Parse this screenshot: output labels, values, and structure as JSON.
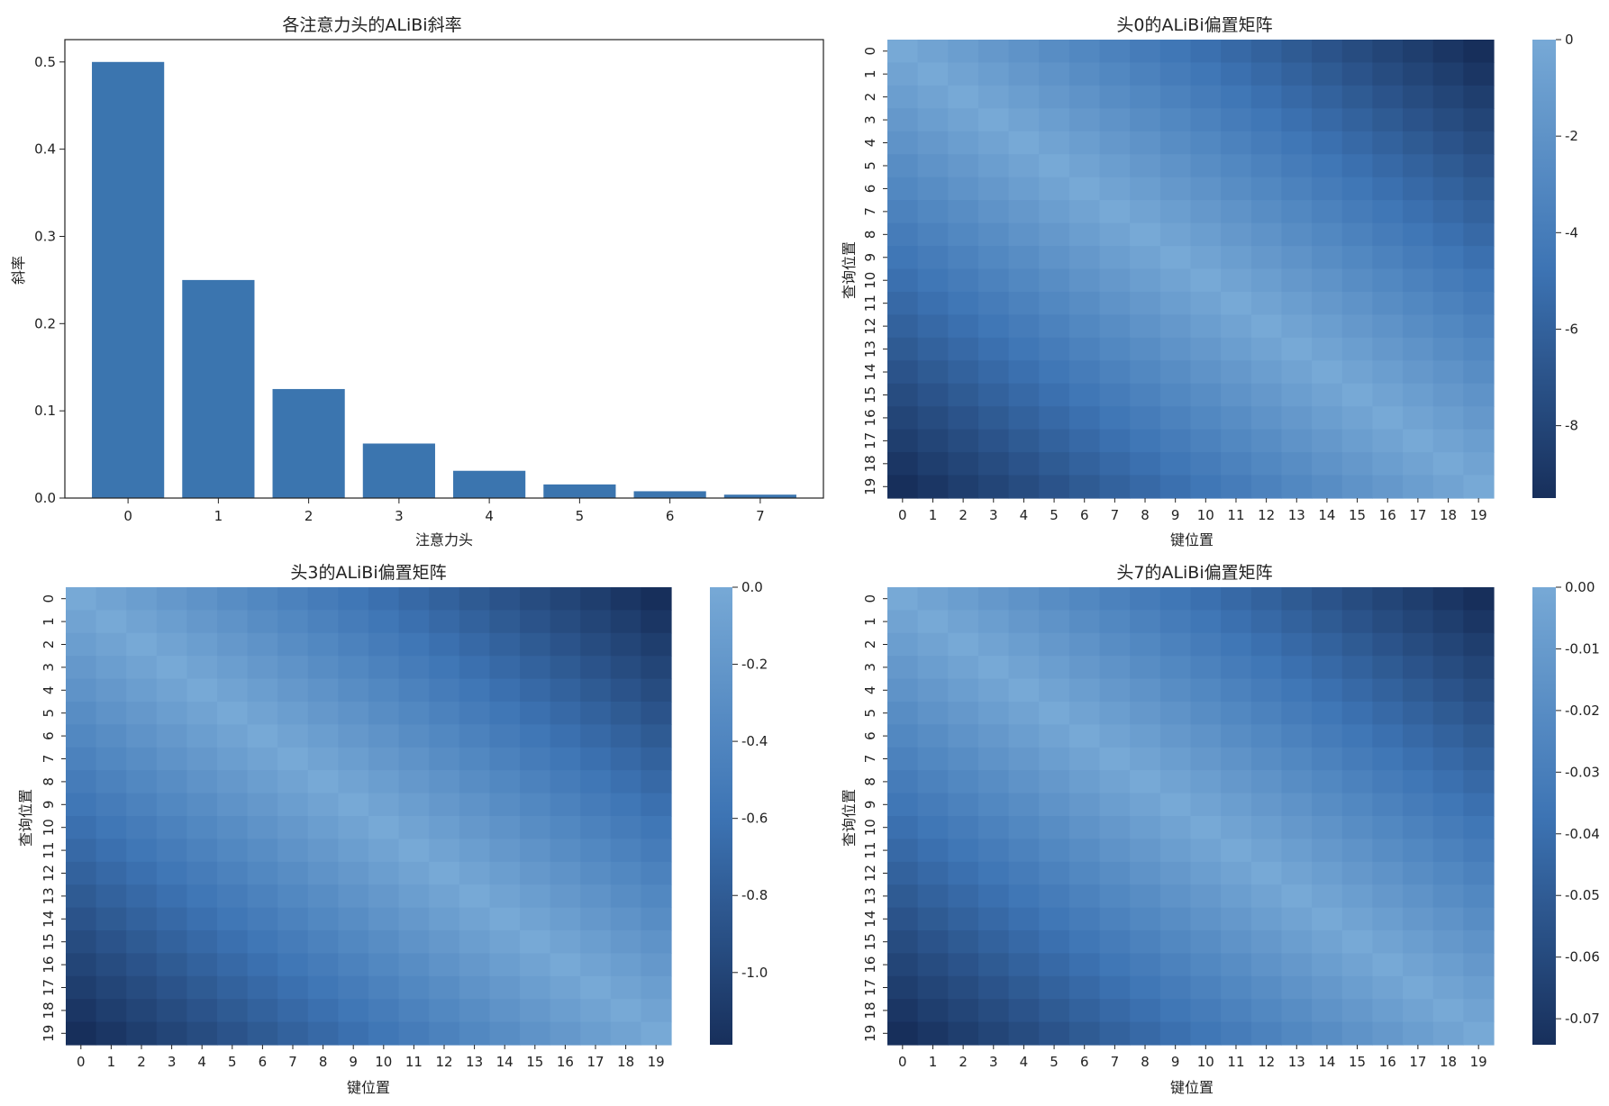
{
  "colors": {
    "bar": "#3b75af",
    "cmap_light": "#77a9d6",
    "cmap_mid": "#3d74b4",
    "cmap_dark": "#172f5b",
    "axis": "#222222"
  },
  "chart_data": [
    {
      "type": "bar",
      "title": "各注意力头的ALiBi斜率",
      "xlabel": "注意力头",
      "ylabel": "斜率",
      "categories": [
        "0",
        "1",
        "2",
        "3",
        "4",
        "5",
        "6",
        "7"
      ],
      "values": [
        0.5,
        0.25,
        0.125,
        0.0625,
        0.03125,
        0.015625,
        0.0078125,
        0.00390625
      ],
      "ylim": [
        0,
        0.5256
      ],
      "yticks": [
        0.0,
        0.1,
        0.2,
        0.3,
        0.4,
        0.5
      ],
      "ytick_labels": [
        "0.0",
        "0.1",
        "0.2",
        "0.3",
        "0.4",
        "0.5"
      ],
      "grid": false
    },
    {
      "type": "heatmap",
      "title": "头0的ALiBi偏置矩阵",
      "xlabel": "键位置",
      "ylabel": "查询位置",
      "size": 20,
      "slope": 0.5,
      "formula": "value = -slope * |query - key|",
      "vmin": -9.5,
      "vmax": 0,
      "colorbar_ticks": [
        0,
        -2,
        -4,
        -6,
        -8
      ],
      "colorbar_labels": [
        "0",
        "-2",
        "-4",
        "-6",
        "-8"
      ]
    },
    {
      "type": "heatmap",
      "title": "头3的ALiBi偏置矩阵",
      "xlabel": "键位置",
      "ylabel": "查询位置",
      "size": 20,
      "slope": 0.0625,
      "formula": "value = -slope * |query - key|",
      "vmin": -1.1875,
      "vmax": 0,
      "colorbar_ticks": [
        0,
        -0.2,
        -0.4,
        -0.6,
        -0.8,
        -1.0
      ],
      "colorbar_labels": [
        "0.0",
        "-0.2",
        "-0.4",
        "-0.6",
        "-0.8",
        "-1.0"
      ]
    },
    {
      "type": "heatmap",
      "title": "头7的ALiBi偏置矩阵",
      "xlabel": "键位置",
      "ylabel": "查询位置",
      "size": 20,
      "slope": 0.00390625,
      "formula": "value = -slope * |query - key|",
      "vmin": -0.07421875,
      "vmax": 0,
      "colorbar_ticks": [
        0,
        -0.01,
        -0.02,
        -0.03,
        -0.04,
        -0.05,
        -0.06,
        -0.07
      ],
      "colorbar_labels": [
        "0.00",
        "-0.01",
        "-0.02",
        "-0.03",
        "-0.04",
        "-0.05",
        "-0.06",
        "-0.07"
      ]
    }
  ]
}
